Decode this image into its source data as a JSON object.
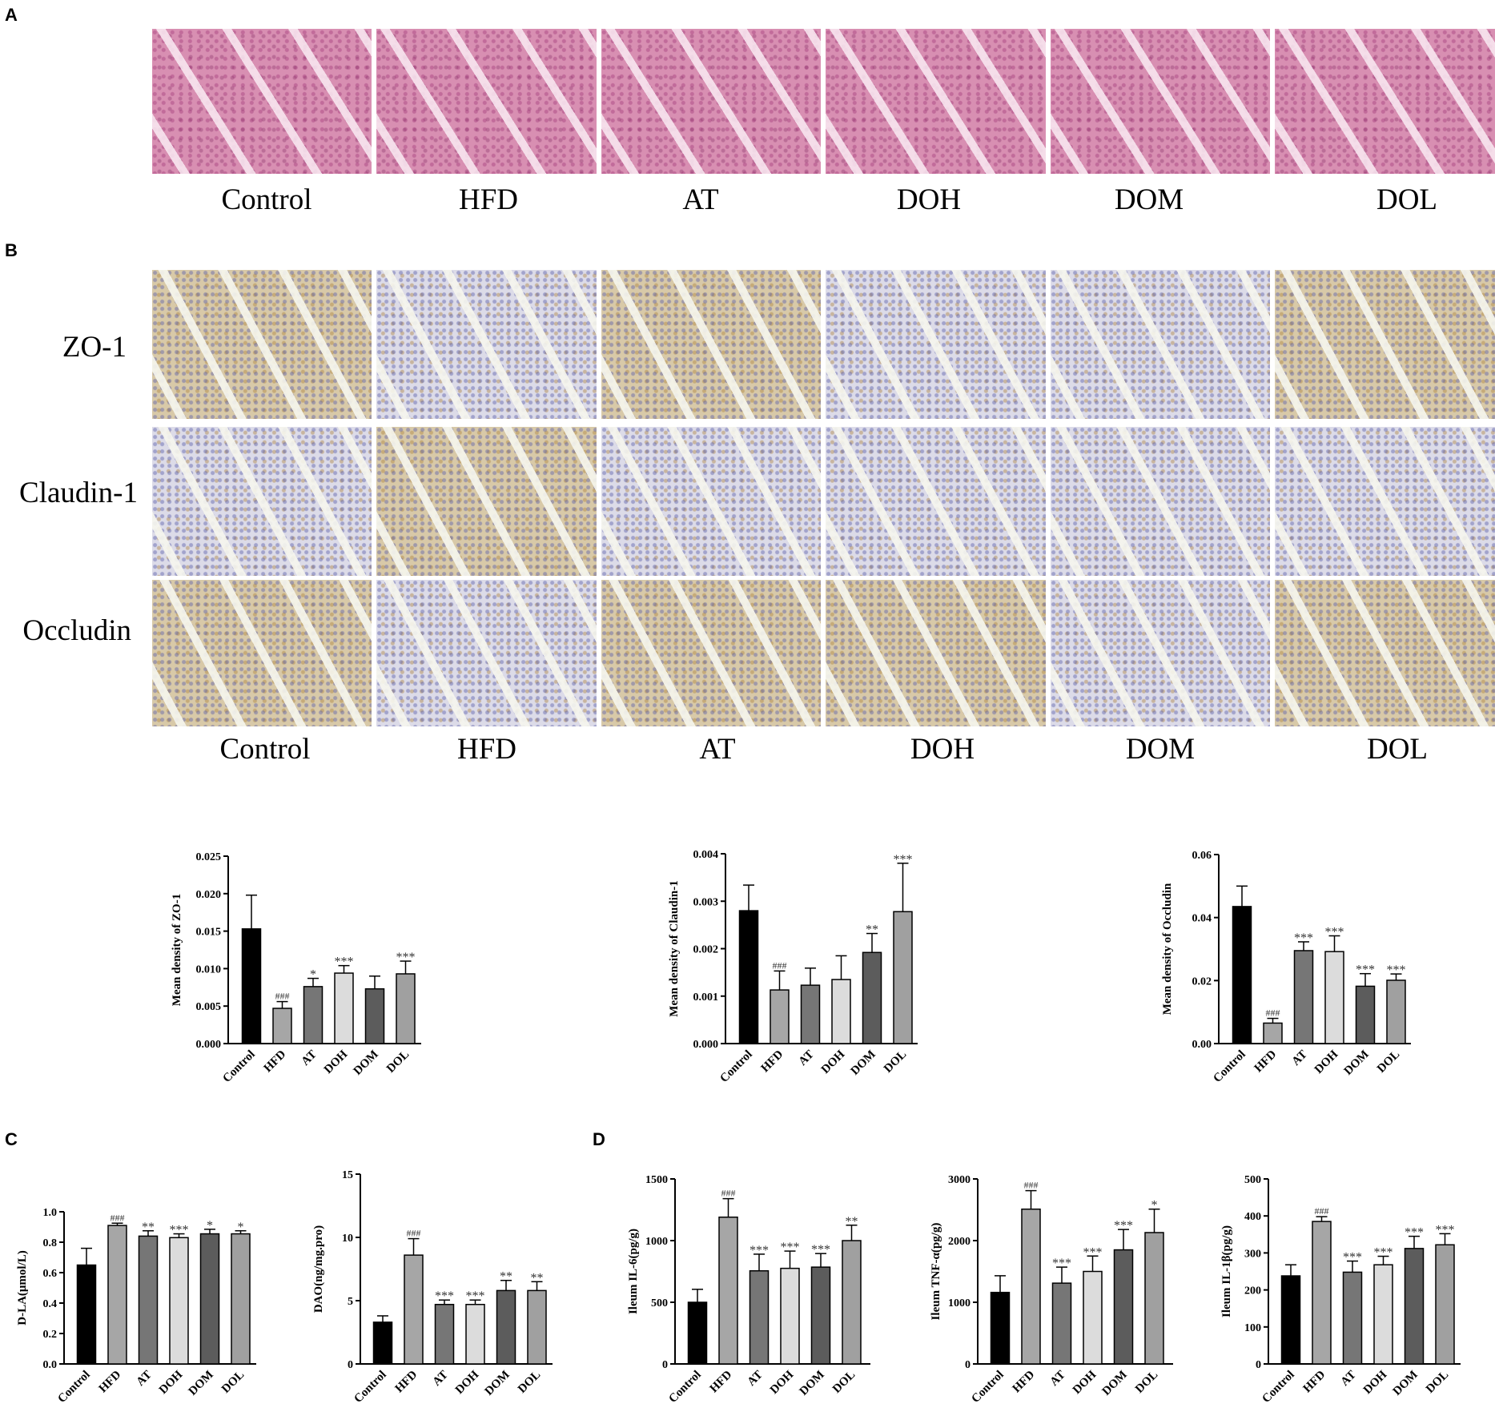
{
  "panel_letters": {
    "a": "A",
    "b": "B",
    "c": "C",
    "d": "D"
  },
  "groups": [
    "Control",
    "HFD",
    "AT",
    "DOH",
    "DOM",
    "DOL"
  ],
  "ihc_rows": [
    "ZO-1",
    "Claudin-1",
    "Occludin"
  ],
  "colors": {
    "bars": [
      "#000000",
      "#a6a6a6",
      "#767676",
      "#dcdcdc",
      "#5c5c5c",
      "#a0a0a0"
    ]
  },
  "chart_data": [
    {
      "id": "zo1",
      "type": "bar",
      "ylabel": "Mean density of ZO-1",
      "categories": [
        "Control",
        "HFD",
        "AT",
        "DOH",
        "DOM",
        "DOL"
      ],
      "values": [
        0.0153,
        0.0047,
        0.0076,
        0.0094,
        0.0073,
        0.0093
      ],
      "errors": [
        0.0045,
        0.0009,
        0.0011,
        0.001,
        0.0017,
        0.0017
      ],
      "sig": [
        "",
        "###",
        "*",
        "***",
        "",
        "***"
      ],
      "ylim": [
        0,
        0.025
      ],
      "yticks": [
        "0.000",
        "0.005",
        "0.010",
        "0.015",
        "0.020",
        "0.025"
      ]
    },
    {
      "id": "claudin",
      "type": "bar",
      "ylabel": "Mean density of Claudin-1",
      "categories": [
        "Control",
        "HFD",
        "AT",
        "DOH",
        "DOM",
        "DOL"
      ],
      "values": [
        0.0028,
        0.00113,
        0.00123,
        0.00135,
        0.00192,
        0.00278
      ],
      "errors": [
        0.00054,
        0.0004,
        0.00036,
        0.0005,
        0.0004,
        0.00102
      ],
      "sig": [
        "",
        "###",
        "",
        "",
        "**",
        "***"
      ],
      "ylim": [
        0,
        0.004
      ],
      "yticks": [
        "0.000",
        "0.001",
        "0.002",
        "0.003",
        "0.004"
      ]
    },
    {
      "id": "occludin",
      "type": "bar",
      "ylabel": "Mean density of Occludin",
      "categories": [
        "Control",
        "HFD",
        "AT",
        "DOH",
        "DOM",
        "DOL"
      ],
      "values": [
        0.0435,
        0.0065,
        0.0295,
        0.0292,
        0.0182,
        0.0201
      ],
      "errors": [
        0.0065,
        0.0015,
        0.0028,
        0.005,
        0.004,
        0.002
      ],
      "sig": [
        "",
        "###",
        "***",
        "***",
        "***",
        "***"
      ],
      "ylim": [
        0,
        0.06
      ],
      "yticks": [
        "0.00",
        "0.02",
        "0.04",
        "0.06"
      ]
    },
    {
      "id": "dla",
      "type": "bar",
      "ylabel": "D-LA(μmol/L)",
      "categories": [
        "Control",
        "HFD",
        "AT",
        "DOH",
        "DOM",
        "DOL"
      ],
      "values": [
        0.65,
        0.91,
        0.84,
        0.83,
        0.855,
        0.855
      ],
      "errors": [
        0.11,
        0.015,
        0.035,
        0.025,
        0.03,
        0.02
      ],
      "sig": [
        "",
        "###",
        "**",
        "***",
        "*",
        "*"
      ],
      "ylim": [
        0,
        1.0
      ],
      "yticks": [
        "0.0",
        "0.2",
        "0.4",
        "0.6",
        "0.8",
        "1.0"
      ]
    },
    {
      "id": "dao",
      "type": "bar",
      "ylabel": "DAO(ng/mg.pro)",
      "categories": [
        "Control",
        "HFD",
        "AT",
        "DOH",
        "DOM",
        "DOL"
      ],
      "values": [
        3.3,
        8.6,
        4.7,
        4.7,
        5.8,
        5.8
      ],
      "errors": [
        0.5,
        1.3,
        0.35,
        0.35,
        0.8,
        0.7
      ],
      "sig": [
        "",
        "###",
        "***",
        "***",
        "**",
        "**"
      ],
      "ylim": [
        0,
        15
      ],
      "yticks": [
        "0",
        "5",
        "10",
        "15"
      ]
    },
    {
      "id": "il6",
      "type": "bar",
      "ylabel": "Ileum IL-6(pg/g)",
      "categories": [
        "Control",
        "HFD",
        "AT",
        "DOH",
        "DOM",
        "DOL"
      ],
      "values": [
        500,
        1190,
        755,
        775,
        785,
        1000
      ],
      "errors": [
        105,
        150,
        135,
        140,
        110,
        125
      ],
      "sig": [
        "",
        "###",
        "***",
        "***",
        "***",
        "**"
      ],
      "ylim": [
        0,
        1500
      ],
      "yticks": [
        "0",
        "500",
        "1000",
        "1500"
      ]
    },
    {
      "id": "tnf",
      "type": "bar",
      "ylabel": "Ileum TNF-α(pg/g)",
      "categories": [
        "Control",
        "HFD",
        "AT",
        "DOH",
        "DOM",
        "DOL"
      ],
      "values": [
        1160,
        2510,
        1310,
        1500,
        1850,
        2130
      ],
      "errors": [
        270,
        300,
        260,
        250,
        330,
        380
      ],
      "sig": [
        "",
        "###",
        "***",
        "***",
        "***",
        "*"
      ],
      "ylim": [
        0,
        3000
      ],
      "yticks": [
        "0",
        "1000",
        "2000",
        "3000"
      ]
    },
    {
      "id": "il1b",
      "type": "bar",
      "ylabel": "Ileum IL-1β(pg/g)",
      "categories": [
        "Control",
        "HFD",
        "AT",
        "DOH",
        "DOM",
        "DOL"
      ],
      "values": [
        238,
        385,
        248,
        268,
        312,
        322
      ],
      "errors": [
        30,
        13,
        30,
        23,
        33,
        30
      ],
      "sig": [
        "",
        "###",
        "***",
        "***",
        "***",
        "***"
      ],
      "ylim": [
        0,
        500
      ],
      "yticks": [
        "0",
        "100",
        "200",
        "300",
        "400",
        "500"
      ]
    }
  ]
}
